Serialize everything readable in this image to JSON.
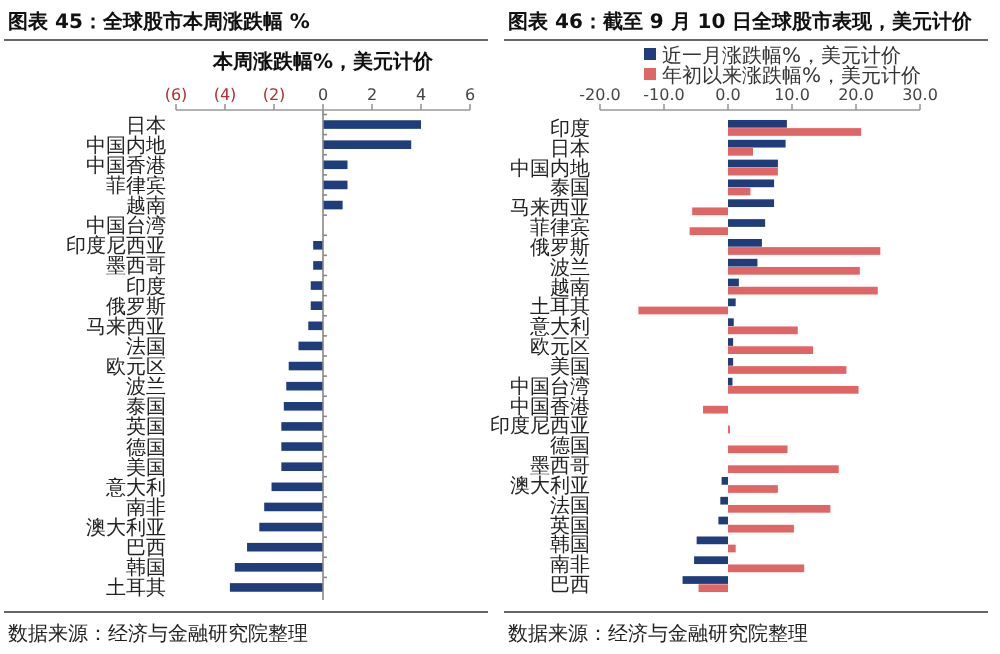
{
  "chart_data": [
    {
      "type": "bar",
      "orientation": "horizontal",
      "title": "图表 45：全球股市本周涨跌幅 %",
      "subtitle": "本周涨跌幅%，美元计价",
      "categories": [
        "日本",
        "中国内地",
        "中国香港",
        "菲律宾",
        "越南",
        "中国台湾",
        "印度尼西亚",
        "墨西哥",
        "印度",
        "俄罗斯",
        "马来西亚",
        "法国",
        "欧元区",
        "波兰",
        "泰国",
        "英国",
        "德国",
        "美国",
        "意大利",
        "南非",
        "澳大利亚",
        "巴西",
        "韩国",
        "土耳其"
      ],
      "values": [
        4.0,
        3.6,
        1.0,
        1.0,
        0.8,
        0.0,
        -0.4,
        -0.4,
        -0.5,
        -0.5,
        -0.6,
        -1.0,
        -1.4,
        -1.5,
        -1.6,
        -1.7,
        -1.7,
        -1.7,
        -2.1,
        -2.4,
        -2.6,
        -3.1,
        -3.6,
        -3.8
      ],
      "color": "#1f3d7a",
      "xlim": [
        -6,
        6
      ],
      "xticks": [
        {
          "value": -6,
          "label": "(6)"
        },
        {
          "value": -4,
          "label": "(4)"
        },
        {
          "value": -2,
          "label": "(2)"
        },
        0,
        2,
        4,
        6
      ],
      "grid": false,
      "annotations": [
        "数据来源：经济与金融研究院整理"
      ]
    },
    {
      "type": "bar",
      "orientation": "horizontal",
      "title": "图表 46：截至 9 月 10 日全球股市表现，美元计价",
      "categories": [
        "印度",
        "日本",
        "中国内地",
        "泰国",
        "马来西亚",
        "菲律宾",
        "俄罗斯",
        "波兰",
        "越南",
        "土耳其",
        "意大利",
        "欧元区",
        "美国",
        "中国台湾",
        "中国香港",
        "印度尼西亚",
        "德国",
        "墨西哥",
        "澳大利亚",
        "法国",
        "英国",
        "韩国",
        "南非",
        "巴西"
      ],
      "series": [
        {
          "name": "近一月涨跌幅%，美元计价",
          "color": "#1f3d7a",
          "values": [
            9.2,
            9.0,
            7.8,
            7.2,
            7.2,
            5.8,
            5.3,
            4.6,
            1.7,
            1.2,
            0.9,
            0.8,
            0.8,
            0.7,
            0.0,
            0.0,
            0.0,
            0.0,
            -1.0,
            -1.2,
            -1.5,
            -4.9,
            -5.3,
            -7.1
          ]
        },
        {
          "name": "年初以来涨跌幅%，美元计价",
          "color": "#e06666",
          "values": [
            20.8,
            3.9,
            7.8,
            3.5,
            -5.6,
            -6.0,
            23.8,
            20.6,
            23.4,
            -14.0,
            10.9,
            13.3,
            18.5,
            20.4,
            -3.9,
            0.3,
            9.3,
            17.3,
            7.8,
            16.0,
            10.3,
            1.2,
            11.9,
            -4.6
          ]
        }
      ],
      "xlim": [
        -20,
        30
      ],
      "xticks": [
        {
          "value": -20,
          "label": "-20.0"
        },
        {
          "value": -10,
          "label": "-10.0"
        },
        {
          "value": 0,
          "label": "0.0"
        },
        {
          "value": 10,
          "label": "10.0"
        },
        {
          "value": 20,
          "label": "20.0"
        },
        {
          "value": 30,
          "label": "30.0"
        }
      ],
      "grid": false,
      "legend": "top",
      "annotations": [
        "数据来源：经济与金融研究院整理"
      ]
    }
  ]
}
